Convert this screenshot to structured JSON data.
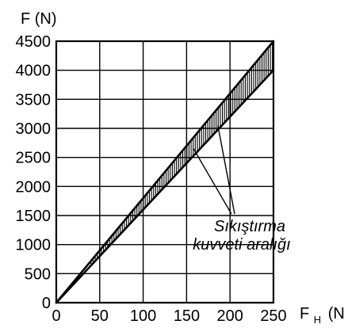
{
  "chart_data": {
    "type": "area",
    "title": "",
    "ylabel": "F (N)",
    "xlabel": {
      "main": "F",
      "sub": "H",
      "unit": "(N)"
    },
    "xlim": [
      0,
      250
    ],
    "ylim": [
      0,
      4500
    ],
    "x_ticks": [
      0,
      50,
      100,
      150,
      200,
      250
    ],
    "y_ticks": [
      0,
      500,
      1000,
      1500,
      2000,
      2500,
      3000,
      3500,
      4000,
      4500
    ],
    "grid": true,
    "series": [
      {
        "x": [
          0,
          250
        ],
        "y": [
          0,
          4500
        ]
      },
      {
        "x": [
          0,
          250
        ],
        "y": [
          0,
          4000
        ]
      }
    ],
    "band": {
      "x_range": [
        40,
        250
      ],
      "fill": "hatched"
    },
    "annotation": {
      "lines": [
        "Sıkıştırma",
        "kuvveti aralığı"
      ],
      "points_to": [
        [
          158,
          2650
        ],
        [
          186,
          3050
        ]
      ]
    },
    "colors": {
      "ink": "#000000",
      "background": "#ffffff"
    }
  }
}
